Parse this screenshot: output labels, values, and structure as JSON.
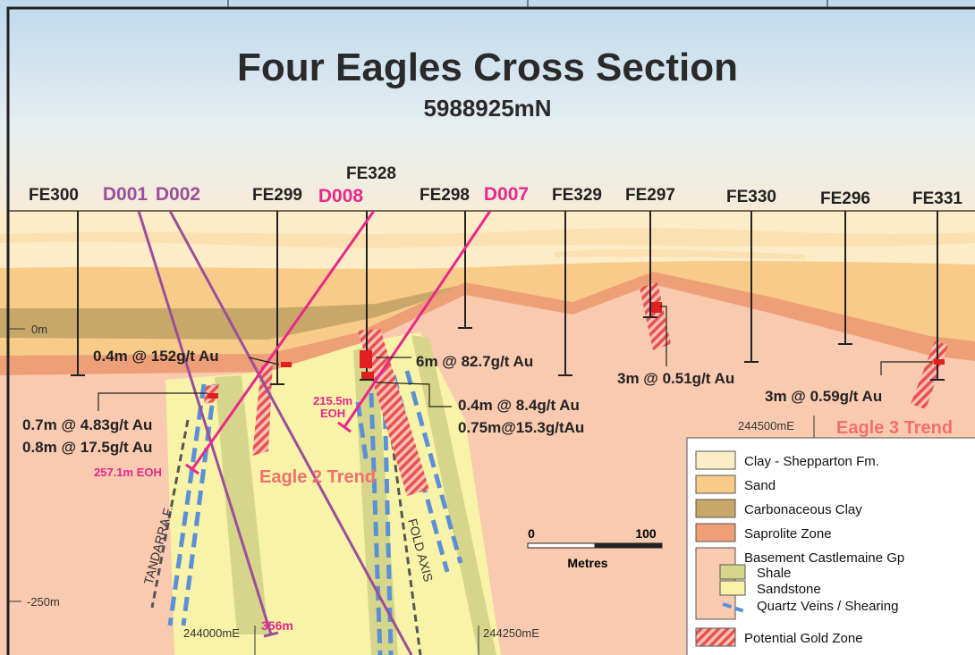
{
  "header": {
    "title": "Four Eagles Cross Section",
    "subtitle": "5988925mN"
  },
  "vertical_holes": [
    "FE300",
    "FE299",
    "FE328",
    "FE298",
    "FE329",
    "FE297",
    "FE330",
    "FE296",
    "FE331"
  ],
  "inclined_holes": [
    "D001",
    "D002",
    "D008",
    "D007"
  ],
  "intercepts": [
    "0.4m @ 152g/t Au",
    "6m @ 82.7g/t Au",
    "0.4m @ 8.4g/t Au",
    "0.75m@15.3g/tAu",
    "3m @ 0.51g/t Au",
    "3m @ 0.59g/t Au",
    "0.7m @ 4.83g/t Au",
    "0.8m @ 17.5g/t Au"
  ],
  "hole_ends": {
    "d007": [
      "215.5m",
      "EOH"
    ],
    "d008": "257.1m EOH",
    "d001": "356m"
  },
  "depths": [
    "0m",
    "-250m"
  ],
  "eastings": [
    "244000mE",
    "244250mE",
    "244500mE"
  ],
  "trends": [
    "Eagle  2 Trend",
    "Eagle 3 Trend"
  ],
  "structures": [
    "TANDARRA F.",
    "FOLD AXIS"
  ],
  "scale": {
    "start": 0,
    "end": 100,
    "unit": "Metres"
  },
  "legend": [
    "Clay - Shepparton Fm.",
    "Sand",
    "Carbonaceous Clay",
    "Saprolite Zone",
    "Basement Castlemaine Gp",
    "Shale",
    "Sandstone",
    "Quartz Veins / Shearing",
    "Potential Gold Zone"
  ]
}
